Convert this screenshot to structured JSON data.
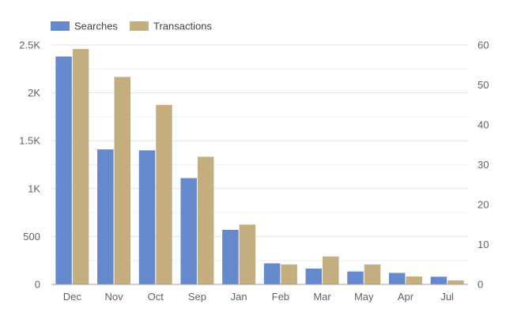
{
  "colors": {
    "searches": "#6688cc",
    "transactions": "#c4ad7f",
    "grid_major": "#e3e3e3",
    "grid_minor": "#f0f0f0",
    "axis": "#9e9e9e",
    "text": "#5f6368"
  },
  "chart_data": {
    "type": "bar",
    "legend_position": "top-left",
    "grid": true,
    "categories": [
      "Dec",
      "Nov",
      "Oct",
      "Sep",
      "Jan",
      "Feb",
      "Mar",
      "May",
      "Apr",
      "Jul"
    ],
    "series": [
      {
        "name": "Searches",
        "axis": "left",
        "values": [
          2380,
          1410,
          1400,
          1110,
          570,
          220,
          165,
          135,
          120,
          80
        ]
      },
      {
        "name": "Transactions",
        "axis": "right",
        "values": [
          59,
          52,
          45,
          32,
          15,
          5,
          7,
          5,
          2,
          1
        ]
      }
    ],
    "y_left": {
      "ylim": [
        0,
        2500
      ],
      "ticks": [
        0,
        500,
        1000,
        1500,
        2000,
        2500
      ],
      "tick_labels": [
        "0",
        "500",
        "1K",
        "1.5K",
        "2K",
        "2.5K"
      ]
    },
    "y_right": {
      "ylim": [
        0,
        60
      ],
      "ticks": [
        0,
        10,
        20,
        30,
        40,
        50,
        60
      ],
      "tick_labels": [
        "0",
        "10",
        "20",
        "30",
        "40",
        "50",
        "60"
      ]
    }
  }
}
